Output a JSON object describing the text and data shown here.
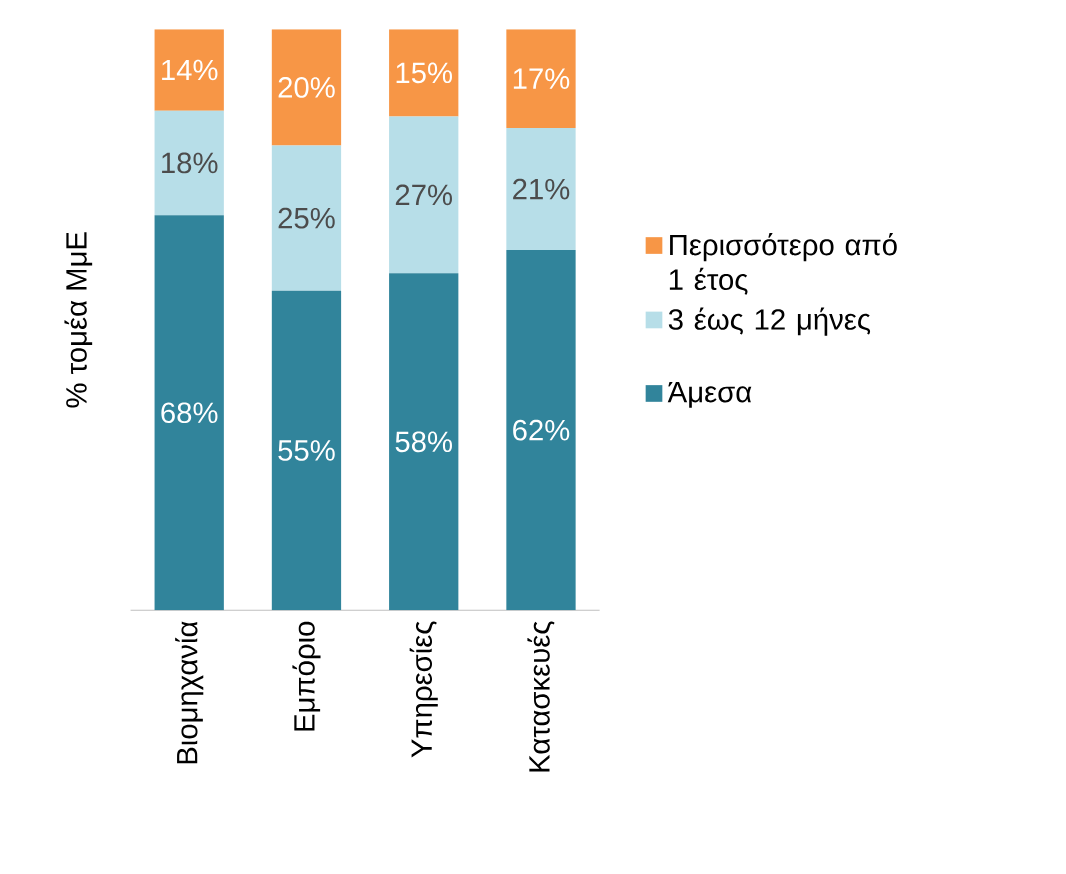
{
  "chart_data": {
    "type": "bar",
    "stacked": true,
    "ylabel": "% τομέα ΜμΕ",
    "legend": "right",
    "categories": [
      "Βιομηχανία",
      "Εμπόριο",
      "Υπηρεσίες",
      "Κατασκευές"
    ],
    "series": [
      {
        "name": "Άμεσα",
        "color": "#31849b",
        "values": [
          68,
          55,
          58,
          62
        ],
        "value_labels": [
          "68%",
          "55%",
          "58%",
          "62%"
        ]
      },
      {
        "name": "3 έως 12 μήνες",
        "color": "#b7dee8",
        "values": [
          18,
          25,
          27,
          21
        ],
        "value_labels": [
          "18%",
          "25%",
          "27%",
          "21%"
        ]
      },
      {
        "name": "Περισσότερο από 1 έτος",
        "color": "#f79646",
        "values": [
          14,
          20,
          15,
          17
        ],
        "value_labels": [
          "14%",
          "20%",
          "15%",
          "17%"
        ]
      }
    ]
  }
}
